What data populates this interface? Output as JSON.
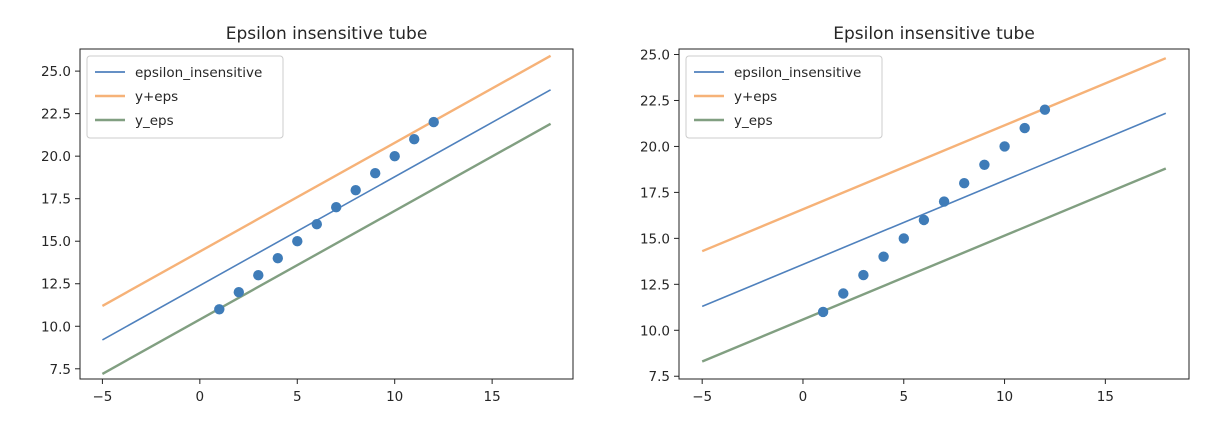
{
  "chart_data": [
    {
      "type": "line",
      "title": "Epsilon insensitive tube",
      "xlabel": "",
      "ylabel": "",
      "xlim": [
        -6.15,
        19.15
      ],
      "ylim": [
        6.9,
        26.3
      ],
      "xticks": [
        -5,
        0,
        5,
        10,
        15
      ],
      "xtick_labels": [
        "−5",
        "0",
        "5",
        "10",
        "15"
      ],
      "yticks": [
        7.5,
        10.0,
        12.5,
        15.0,
        17.5,
        20.0,
        22.5,
        25.0
      ],
      "ytick_labels": [
        "7.5",
        "10.0",
        "12.5",
        "15.0",
        "17.5",
        "20.0",
        "22.5",
        "25.0"
      ],
      "grid": false,
      "legend_position": "top-left",
      "series": [
        {
          "name": "epsilon_insensitive",
          "type": "line",
          "color": "#4f81bd",
          "x": [
            -5,
            18
          ],
          "y": [
            9.2,
            23.9
          ]
        },
        {
          "name": "y+eps",
          "type": "line",
          "color": "#f4a460",
          "x": [
            -5,
            18
          ],
          "y": [
            11.2,
            25.9
          ]
        },
        {
          "name": "y_eps",
          "type": "line",
          "color": "#6b8e6b",
          "x": [
            -5,
            18
          ],
          "y": [
            7.2,
            21.9
          ]
        },
        {
          "name": "",
          "type": "scatter",
          "color": "#3f7cb8",
          "x": [
            1,
            2,
            3,
            4,
            5,
            6,
            7,
            8,
            9,
            10,
            11,
            12
          ],
          "y": [
            11,
            12,
            13,
            14,
            15,
            16,
            17,
            18,
            19,
            20,
            21,
            22
          ]
        }
      ]
    },
    {
      "type": "line",
      "title": "Epsilon insensitive tube",
      "xlabel": "",
      "ylabel": "",
      "xlim": [
        -6.15,
        19.15
      ],
      "ylim": [
        7.35,
        25.3
      ],
      "xticks": [
        -5,
        0,
        5,
        10,
        15
      ],
      "xtick_labels": [
        "−5",
        "0",
        "5",
        "10",
        "15"
      ],
      "yticks": [
        7.5,
        10.0,
        12.5,
        15.0,
        17.5,
        20.0,
        22.5,
        25.0
      ],
      "ytick_labels": [
        "7.5",
        "10.0",
        "12.5",
        "15.0",
        "17.5",
        "20.0",
        "22.5",
        "25.0"
      ],
      "grid": false,
      "legend_position": "top-left",
      "series": [
        {
          "name": "epsilon_insensitive",
          "type": "line",
          "color": "#4f81bd",
          "x": [
            -5,
            18
          ],
          "y": [
            11.3,
            21.8
          ]
        },
        {
          "name": "y+eps",
          "type": "line",
          "color": "#f4a460",
          "x": [
            -5,
            18
          ],
          "y": [
            14.3,
            24.8
          ]
        },
        {
          "name": "y_eps",
          "type": "line",
          "color": "#6b8e6b",
          "x": [
            -5,
            18
          ],
          "y": [
            8.3,
            18.8
          ]
        },
        {
          "name": "",
          "type": "scatter",
          "color": "#3f7cb8",
          "x": [
            1,
            2,
            3,
            4,
            5,
            6,
            7,
            8,
            9,
            10,
            11,
            12
          ],
          "y": [
            11,
            12,
            13,
            14,
            15,
            16,
            17,
            18,
            19,
            20,
            21,
            22
          ]
        }
      ]
    }
  ]
}
